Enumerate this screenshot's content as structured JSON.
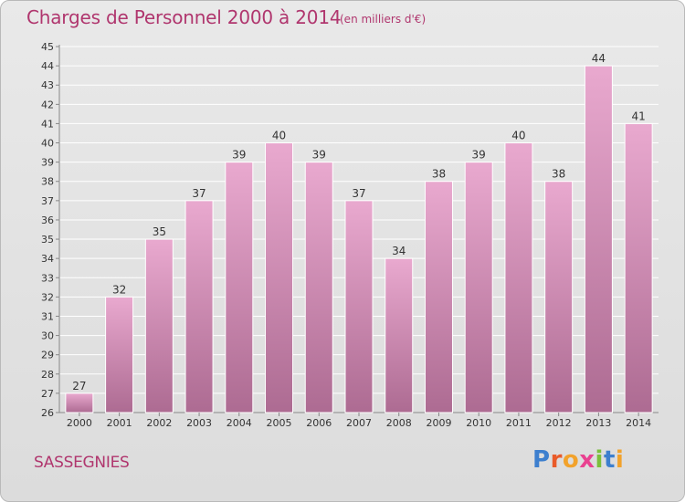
{
  "header": {
    "title": "Charges de Personnel 2000 à 2014",
    "subtitle": "(en milliers d'€)"
  },
  "footer": {
    "commune": "SASSEGNIES",
    "logo_letters": [
      "P",
      "r",
      "o",
      "x",
      "i",
      "t",
      "i"
    ]
  },
  "colors": {
    "title": "#b0366e",
    "bar_top": "#e9a9cf",
    "bar_bottom": "#ad6b92",
    "grid": "#ffffff",
    "logo": [
      "#3d7fce",
      "#e95b2a",
      "#f2a22b",
      "#e94190",
      "#7bbf3a",
      "#3d7fce",
      "#f2a22b"
    ]
  },
  "chart_data": {
    "type": "bar",
    "categories": [
      "2000",
      "2001",
      "2002",
      "2003",
      "2004",
      "2005",
      "2006",
      "2007",
      "2008",
      "2009",
      "2010",
      "2011",
      "2012",
      "2013",
      "2014"
    ],
    "values": [
      27,
      32,
      35,
      37,
      39,
      40,
      39,
      37,
      34,
      38,
      39,
      40,
      38,
      44,
      41
    ],
    "ylim": [
      26,
      45
    ],
    "yticks": [
      26,
      27,
      28,
      29,
      30,
      31,
      32,
      33,
      34,
      35,
      36,
      37,
      38,
      39,
      40,
      41,
      42,
      43,
      44,
      45
    ],
    "grid": true
  }
}
